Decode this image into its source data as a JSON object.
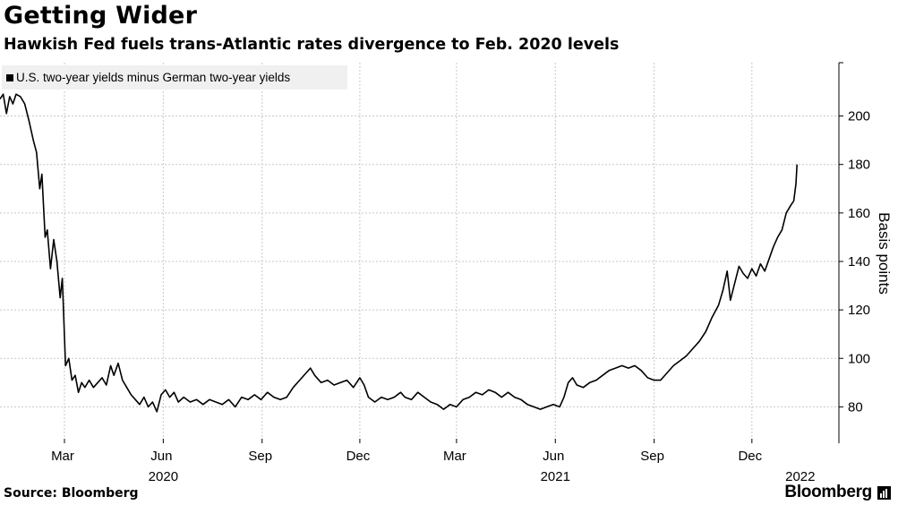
{
  "header": {
    "title": "Getting Wider",
    "subtitle": "Hawkish Fed fuels trans-Atlantic rates divergence to Feb. 2020 levels"
  },
  "legend": {
    "label": "U.S. two-year yields minus German two-year yields"
  },
  "footer": {
    "source": "Source: Bloomberg",
    "brand": "Bloomberg"
  },
  "colors": {
    "line": "#000000",
    "grid": "#c8c8c8",
    "legend_bg": "#f0f0f0"
  },
  "chart_data": {
    "type": "line",
    "title": "Getting Wider",
    "subtitle": "Hawkish Fed fuels trans-Atlantic rates divergence to Feb. 2020 levels",
    "ylabel": "Basis points",
    "xlabel": "",
    "ylim": [
      65,
      222
    ],
    "yticks": [
      80,
      100,
      120,
      140,
      160,
      180,
      200
    ],
    "xlim": [
      "2020-01-01",
      "2022-02-20"
    ],
    "xticks": [
      {
        "date": "2020-03-01",
        "label": "Mar"
      },
      {
        "date": "2020-06-01",
        "label": "Jun"
      },
      {
        "date": "2020-09-01",
        "label": "Sep"
      },
      {
        "date": "2020-12-01",
        "label": "Dec"
      },
      {
        "date": "2021-03-01",
        "label": "Mar"
      },
      {
        "date": "2021-06-01",
        "label": "Jun"
      },
      {
        "date": "2021-09-01",
        "label": "Sep"
      },
      {
        "date": "2021-12-01",
        "label": "Dec"
      }
    ],
    "year_labels": [
      {
        "date": "2020-06-01",
        "label": "2020"
      },
      {
        "date": "2021-06-01",
        "label": "2021"
      },
      {
        "date": "2022-01-15",
        "label": "2022"
      }
    ],
    "grid": true,
    "legend_position": "top-left",
    "series": [
      {
        "name": "U.S. two-year yields minus German two-year yields",
        "color": "#000000",
        "points": [
          [
            "2020-01-01",
            207
          ],
          [
            "2020-01-04",
            209
          ],
          [
            "2020-01-07",
            201
          ],
          [
            "2020-01-10",
            208
          ],
          [
            "2020-01-13",
            205
          ],
          [
            "2020-01-16",
            209
          ],
          [
            "2020-01-20",
            208
          ],
          [
            "2020-01-24",
            205
          ],
          [
            "2020-01-28",
            198
          ],
          [
            "2020-02-01",
            190
          ],
          [
            "2020-02-04",
            185
          ],
          [
            "2020-02-07",
            170
          ],
          [
            "2020-02-09",
            176
          ],
          [
            "2020-02-12",
            150
          ],
          [
            "2020-02-14",
            153
          ],
          [
            "2020-02-17",
            137
          ],
          [
            "2020-02-20",
            149
          ],
          [
            "2020-02-23",
            140
          ],
          [
            "2020-02-26",
            125
          ],
          [
            "2020-02-28",
            133
          ],
          [
            "2020-03-02",
            97
          ],
          [
            "2020-03-05",
            100
          ],
          [
            "2020-03-08",
            91
          ],
          [
            "2020-03-11",
            93
          ],
          [
            "2020-03-14",
            86
          ],
          [
            "2020-03-17",
            90
          ],
          [
            "2020-03-20",
            88
          ],
          [
            "2020-03-24",
            91
          ],
          [
            "2020-03-28",
            88
          ],
          [
            "2020-04-01",
            90
          ],
          [
            "2020-04-05",
            92
          ],
          [
            "2020-04-09",
            89
          ],
          [
            "2020-04-13",
            97
          ],
          [
            "2020-04-16",
            93
          ],
          [
            "2020-04-20",
            98
          ],
          [
            "2020-04-24",
            91
          ],
          [
            "2020-04-28",
            88
          ],
          [
            "2020-05-02",
            85
          ],
          [
            "2020-05-06",
            83
          ],
          [
            "2020-05-10",
            81
          ],
          [
            "2020-05-14",
            84
          ],
          [
            "2020-05-18",
            80
          ],
          [
            "2020-05-22",
            82
          ],
          [
            "2020-05-26",
            78
          ],
          [
            "2020-05-30",
            85
          ],
          [
            "2020-06-03",
            87
          ],
          [
            "2020-06-07",
            84
          ],
          [
            "2020-06-11",
            86
          ],
          [
            "2020-06-15",
            82
          ],
          [
            "2020-06-20",
            84
          ],
          [
            "2020-06-26",
            82
          ],
          [
            "2020-07-02",
            83
          ],
          [
            "2020-07-08",
            81
          ],
          [
            "2020-07-14",
            83
          ],
          [
            "2020-07-20",
            82
          ],
          [
            "2020-07-26",
            81
          ],
          [
            "2020-08-01",
            83
          ],
          [
            "2020-08-07",
            80
          ],
          [
            "2020-08-13",
            84
          ],
          [
            "2020-08-19",
            83
          ],
          [
            "2020-08-25",
            85
          ],
          [
            "2020-08-31",
            83
          ],
          [
            "2020-09-06",
            86
          ],
          [
            "2020-09-12",
            84
          ],
          [
            "2020-09-18",
            83
          ],
          [
            "2020-09-24",
            84
          ],
          [
            "2020-09-30",
            88
          ],
          [
            "2020-10-06",
            91
          ],
          [
            "2020-10-12",
            94
          ],
          [
            "2020-10-16",
            96
          ],
          [
            "2020-10-20",
            93
          ],
          [
            "2020-10-26",
            90
          ],
          [
            "2020-11-01",
            91
          ],
          [
            "2020-11-07",
            89
          ],
          [
            "2020-11-13",
            90
          ],
          [
            "2020-11-19",
            91
          ],
          [
            "2020-11-25",
            88
          ],
          [
            "2020-12-01",
            92
          ],
          [
            "2020-12-05",
            89
          ],
          [
            "2020-12-09",
            84
          ],
          [
            "2020-12-15",
            82
          ],
          [
            "2020-12-21",
            84
          ],
          [
            "2020-12-27",
            83
          ],
          [
            "2021-01-02",
            84
          ],
          [
            "2021-01-08",
            86
          ],
          [
            "2021-01-12",
            84
          ],
          [
            "2021-01-18",
            83
          ],
          [
            "2021-01-24",
            86
          ],
          [
            "2021-01-30",
            84
          ],
          [
            "2021-02-05",
            82
          ],
          [
            "2021-02-11",
            81
          ],
          [
            "2021-02-17",
            79
          ],
          [
            "2021-02-23",
            81
          ],
          [
            "2021-03-01",
            80
          ],
          [
            "2021-03-07",
            83
          ],
          [
            "2021-03-13",
            84
          ],
          [
            "2021-03-19",
            86
          ],
          [
            "2021-03-25",
            85
          ],
          [
            "2021-03-31",
            87
          ],
          [
            "2021-04-06",
            86
          ],
          [
            "2021-04-12",
            84
          ],
          [
            "2021-04-18",
            86
          ],
          [
            "2021-04-24",
            84
          ],
          [
            "2021-04-30",
            83
          ],
          [
            "2021-05-06",
            81
          ],
          [
            "2021-05-12",
            80
          ],
          [
            "2021-05-18",
            79
          ],
          [
            "2021-05-24",
            80
          ],
          [
            "2021-05-30",
            81
          ],
          [
            "2021-06-05",
            80
          ],
          [
            "2021-06-09",
            84
          ],
          [
            "2021-06-13",
            90
          ],
          [
            "2021-06-17",
            92
          ],
          [
            "2021-06-21",
            89
          ],
          [
            "2021-06-27",
            88
          ],
          [
            "2021-07-03",
            90
          ],
          [
            "2021-07-09",
            91
          ],
          [
            "2021-07-15",
            93
          ],
          [
            "2021-07-21",
            95
          ],
          [
            "2021-07-27",
            96
          ],
          [
            "2021-08-02",
            97
          ],
          [
            "2021-08-08",
            96
          ],
          [
            "2021-08-14",
            97
          ],
          [
            "2021-08-20",
            95
          ],
          [
            "2021-08-26",
            92
          ],
          [
            "2021-09-01",
            91
          ],
          [
            "2021-09-07",
            91
          ],
          [
            "2021-09-13",
            94
          ],
          [
            "2021-09-19",
            97
          ],
          [
            "2021-09-25",
            99
          ],
          [
            "2021-10-01",
            101
          ],
          [
            "2021-10-07",
            104
          ],
          [
            "2021-10-13",
            107
          ],
          [
            "2021-10-19",
            111
          ],
          [
            "2021-10-25",
            117
          ],
          [
            "2021-10-31",
            122
          ],
          [
            "2021-11-04",
            128
          ],
          [
            "2021-11-08",
            136
          ],
          [
            "2021-11-11",
            124
          ],
          [
            "2021-11-15",
            131
          ],
          [
            "2021-11-19",
            138
          ],
          [
            "2021-11-23",
            135
          ],
          [
            "2021-11-27",
            133
          ],
          [
            "2021-12-01",
            137
          ],
          [
            "2021-12-05",
            134
          ],
          [
            "2021-12-09",
            139
          ],
          [
            "2021-12-13",
            136
          ],
          [
            "2021-12-17",
            141
          ],
          [
            "2021-12-21",
            146
          ],
          [
            "2021-12-25",
            150
          ],
          [
            "2021-12-29",
            153
          ],
          [
            "2022-01-02",
            160
          ],
          [
            "2022-01-06",
            163
          ],
          [
            "2022-01-09",
            165
          ],
          [
            "2022-01-11",
            172
          ],
          [
            "2022-01-12",
            180
          ]
        ]
      }
    ]
  }
}
